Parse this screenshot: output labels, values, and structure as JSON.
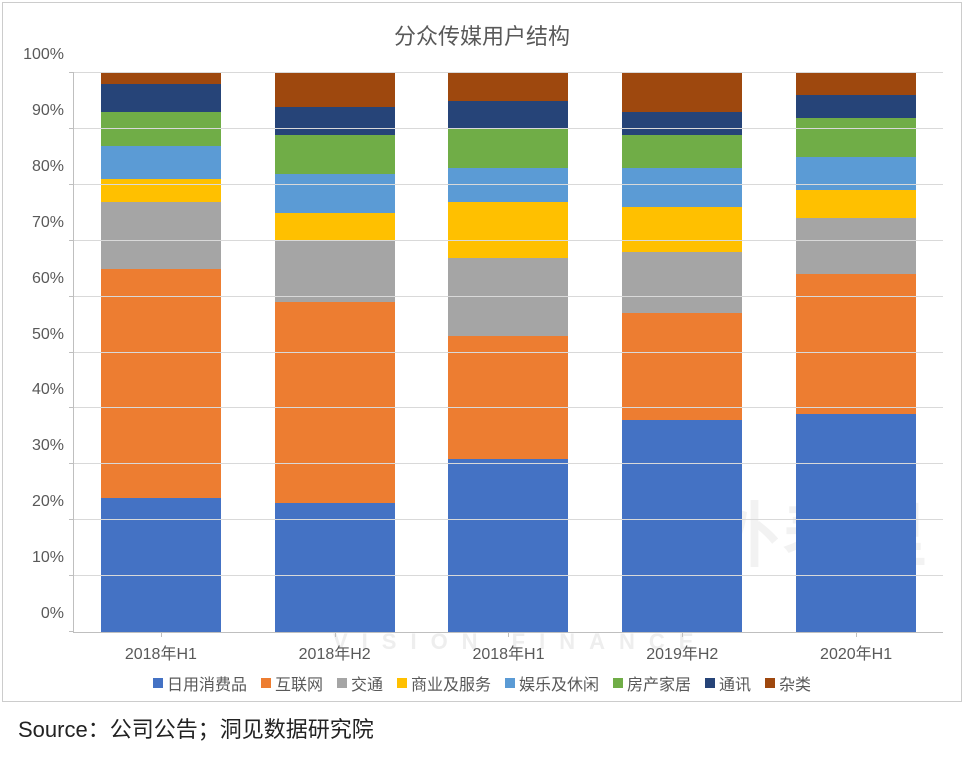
{
  "chart": {
    "type": "stacked-bar",
    "title": "分众传媒用户结构",
    "title_fontsize": 22,
    "title_color": "#595959",
    "background_color": "#ffffff",
    "border_color": "#cccccc",
    "grid_color": "#d9d9d9",
    "axis_color": "#bfbfbf",
    "tick_label_color": "#595959",
    "tick_fontsize": 16,
    "ylim": [
      0,
      100
    ],
    "ytick_step": 10,
    "ytick_suffix": "%",
    "bar_width_ratio": 0.69,
    "categories": [
      "2018年H1",
      "2018年H2",
      "2018年H1",
      "2019年H2",
      "2020年H1"
    ],
    "series": [
      {
        "name": "日用消费品",
        "color": "#4472c4"
      },
      {
        "name": "互联网",
        "color": "#ed7d31"
      },
      {
        "name": "交通",
        "color": "#a5a5a5"
      },
      {
        "name": "商业及服务",
        "color": "#ffc000"
      },
      {
        "name": "娱乐及休闲",
        "color": "#5b9bd5"
      },
      {
        "name": "房产家居",
        "color": "#70ad47"
      },
      {
        "name": "通讯",
        "color": "#264478"
      },
      {
        "name": "杂类",
        "color": "#9e480e"
      }
    ],
    "values": [
      [
        24,
        41,
        12,
        4,
        6,
        6,
        5,
        2
      ],
      [
        23,
        36,
        11,
        5,
        7,
        7,
        5,
        6
      ],
      [
        31,
        22,
        14,
        10,
        6,
        7,
        5,
        5
      ],
      [
        38,
        19,
        11,
        8,
        7,
        6,
        4,
        7
      ],
      [
        39,
        25,
        10,
        5,
        6,
        7,
        4,
        4
      ]
    ]
  },
  "watermarks": {
    "big_logo_text": "",
    "corner_text": "表外表里",
    "subtext": "VISION FINANCE"
  },
  "legend_position": "bottom",
  "source_label": "Source：公司公告；洞见数据研究院"
}
